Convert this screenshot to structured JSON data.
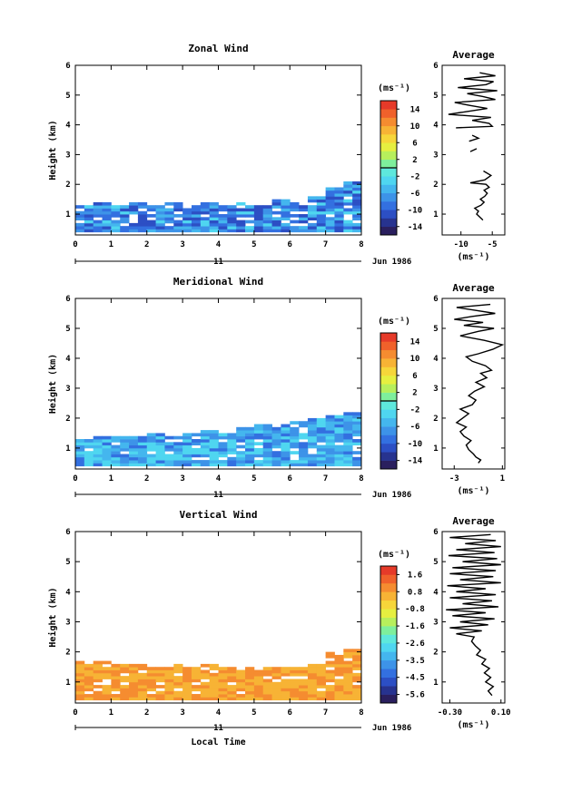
{
  "chart_data": [
    {
      "type": "heatmap",
      "title": "Zonal Wind",
      "xlabel": "",
      "ylabel": "Height (km)",
      "xlim": [
        0,
        8
      ],
      "ylim": [
        0.3,
        6
      ],
      "x_ticks": [
        "0",
        "1",
        "2",
        "3",
        "4",
        "5",
        "6",
        "7",
        "8"
      ],
      "y_ticks": [
        "1",
        "2",
        "3",
        "4",
        "5",
        "6"
      ],
      "date_axis": {
        "day": "11",
        "label": "Jun 1986"
      },
      "colorbar": {
        "unit": "(ms⁻¹)",
        "ticks": [
          "14",
          "10",
          "6",
          "2",
          "-2",
          "-6",
          "-10",
          "-14"
        ],
        "range": [
          -16,
          16
        ],
        "zero_marker": 0
      },
      "coverage": {
        "base_km": 0.4,
        "top_km": [
          1.25,
          1.35,
          1.3,
          1.35,
          1.3,
          1.35,
          1.3,
          1.4,
          1.3,
          1.4,
          1.3,
          1.5,
          1.4,
          1.6,
          1.9,
          2.1
        ],
        "value_range": [
          -12,
          -3
        ]
      },
      "profile": {
        "title": "Average",
        "xlabel": "(ms⁻¹)",
        "xlim": [
          -13,
          -3
        ],
        "x_ticks": [
          "-10",
          "-5"
        ],
        "y_ticks": [
          "1",
          "2",
          "3",
          "4",
          "5",
          "6"
        ],
        "segments": [
          [
            [
              -6.5,
              0.8
            ],
            [
              -7,
              0.9
            ],
            [
              -7.5,
              1.0
            ],
            [
              -7.2,
              1.1
            ],
            [
              -7.8,
              1.2
            ],
            [
              -6.8,
              1.3
            ],
            [
              -6.3,
              1.4
            ],
            [
              -6.9,
              1.5
            ],
            [
              -6.2,
              1.6
            ],
            [
              -5.8,
              1.7
            ],
            [
              -6.3,
              1.8
            ],
            [
              -5.5,
              1.9
            ],
            [
              -6,
              2.0
            ],
            [
              -8.5,
              2.05
            ],
            [
              -6.2,
              2.15
            ],
            [
              -5.2,
              2.3
            ],
            [
              -6.4,
              2.45
            ]
          ],
          [
            [
              -8.5,
              3.1
            ],
            [
              -7.5,
              3.2
            ]
          ],
          [
            [
              -8.7,
              3.45
            ],
            [
              -7.2,
              3.55
            ],
            [
              -8.2,
              3.65
            ]
          ],
          [
            [
              -10.8,
              3.9
            ],
            [
              -5,
              3.95
            ],
            [
              -5.5,
              4.05
            ],
            [
              -8.2,
              4.15
            ],
            [
              -5.2,
              4.25
            ],
            [
              -12,
              4.35
            ],
            [
              -9,
              4.45
            ],
            [
              -5.8,
              4.55
            ],
            [
              -8.5,
              4.65
            ],
            [
              -11,
              4.75
            ],
            [
              -4.5,
              4.85
            ],
            [
              -6.5,
              4.95
            ],
            [
              -9,
              5.05
            ],
            [
              -4.2,
              5.15
            ],
            [
              -10.5,
              5.25
            ],
            [
              -6,
              5.35
            ],
            [
              -4.8,
              5.45
            ],
            [
              -9.5,
              5.55
            ],
            [
              -4.5,
              5.65
            ],
            [
              -7,
              5.75
            ]
          ]
        ]
      }
    },
    {
      "type": "heatmap",
      "title": "Meridional Wind",
      "xlabel": "",
      "ylabel": "Height (km)",
      "xlim": [
        0,
        8
      ],
      "ylim": [
        0.3,
        6
      ],
      "x_ticks": [
        "0",
        "1",
        "2",
        "3",
        "4",
        "5",
        "6",
        "7",
        "8"
      ],
      "y_ticks": [
        "1",
        "2",
        "3",
        "4",
        "5",
        "6"
      ],
      "date_axis": {
        "day": "11",
        "label": "Jun 1986"
      },
      "colorbar": {
        "unit": "(ms⁻¹)",
        "ticks": [
          "14",
          "10",
          "6",
          "2",
          "-2",
          "-6",
          "-10",
          "-14"
        ],
        "range": [
          -16,
          16
        ],
        "zero_marker": 0
      },
      "coverage": {
        "base_km": 0.4,
        "top_km": [
          1.3,
          1.4,
          1.45,
          1.4,
          1.5,
          1.45,
          1.5,
          1.6,
          1.55,
          1.7,
          1.75,
          1.8,
          1.9,
          2.0,
          2.1,
          2.2
        ],
        "value_range": [
          -9,
          -2
        ]
      },
      "profile": {
        "title": "Average",
        "xlabel": "(ms⁻¹)",
        "xlim": [
          -4,
          1.2
        ],
        "x_ticks": [
          "-3",
          "1"
        ],
        "y_ticks": [
          "1",
          "2",
          "3",
          "4",
          "5",
          "6"
        ],
        "segments": [
          [
            [
              -1,
              0.5
            ],
            [
              -0.8,
              0.6
            ],
            [
              -1.2,
              0.7
            ],
            [
              -1.4,
              0.8
            ],
            [
              -1.8,
              0.95
            ],
            [
              -2,
              1.1
            ],
            [
              -1.6,
              1.25
            ],
            [
              -2.2,
              1.4
            ],
            [
              -2.5,
              1.55
            ],
            [
              -2,
              1.7
            ],
            [
              -2.8,
              1.85
            ],
            [
              -2.3,
              2.0
            ],
            [
              -1.8,
              2.15
            ],
            [
              -2.5,
              2.3
            ],
            [
              -1.5,
              2.45
            ],
            [
              -1.2,
              2.6
            ],
            [
              -1.8,
              2.75
            ],
            [
              -1.3,
              2.9
            ],
            [
              -0.5,
              3.05
            ],
            [
              -1.2,
              3.2
            ],
            [
              -0.3,
              3.35
            ],
            [
              -0.8,
              3.5
            ],
            [
              0.1,
              3.6
            ],
            [
              -0.4,
              3.75
            ],
            [
              -1.5,
              3.9
            ],
            [
              -2,
              4.05
            ],
            [
              -1,
              4.15
            ],
            [
              0.2,
              4.3
            ],
            [
              1,
              4.45
            ],
            [
              -0.5,
              4.6
            ],
            [
              -2.5,
              4.75
            ],
            [
              -1,
              4.9
            ],
            [
              0.3,
              5.0
            ],
            [
              -2.2,
              5.1
            ],
            [
              -0.6,
              5.2
            ],
            [
              -3,
              5.3
            ],
            [
              -1.5,
              5.4
            ],
            [
              0.4,
              5.5
            ],
            [
              -1.2,
              5.6
            ],
            [
              -2.8,
              5.7
            ],
            [
              0,
              5.8
            ]
          ]
        ]
      }
    },
    {
      "type": "heatmap",
      "title": "Vertical Wind",
      "xlabel": "Local Time",
      "ylabel": "Height (km)",
      "xlim": [
        0,
        8
      ],
      "ylim": [
        0.3,
        6
      ],
      "x_ticks": [
        "0",
        "1",
        "2",
        "3",
        "4",
        "5",
        "6",
        "7",
        "8"
      ],
      "y_ticks": [
        "1",
        "2",
        "3",
        "4",
        "5",
        "6"
      ],
      "date_axis": {
        "day": "11",
        "label": "Jun 1986"
      },
      "colorbar": {
        "unit": "(ms⁻¹)",
        "ticks": [
          "1.6",
          "0.8",
          "-0.8",
          "-1.6",
          "-2.6",
          "-3.5",
          "-4.5",
          "-5.6"
        ],
        "range": [
          -6,
          2
        ],
        "zero_marker": null
      },
      "coverage": {
        "base_km": 0.4,
        "top_km": [
          1.65,
          1.65,
          1.6,
          1.6,
          1.55,
          1.6,
          1.55,
          1.6,
          1.55,
          1.55,
          1.5,
          1.5,
          1.55,
          1.6,
          2.0,
          2.1
        ],
        "value_range": [
          0.1,
          0.8
        ]
      },
      "profile": {
        "title": "Average",
        "xlabel": "(ms⁻¹)",
        "xlim": [
          -0.36,
          0.13
        ],
        "x_ticks": [
          "-0.30",
          "0.10"
        ],
        "y_ticks": [
          "1",
          "2",
          "3",
          "4",
          "5",
          "6"
        ],
        "segments": [
          [
            [
              0.03,
              0.55
            ],
            [
              0.0,
              0.7
            ],
            [
              0.04,
              0.85
            ],
            [
              -0.02,
              1.0
            ],
            [
              0.02,
              1.15
            ],
            [
              -0.03,
              1.3
            ],
            [
              0.01,
              1.45
            ],
            [
              -0.05,
              1.6
            ],
            [
              -0.02,
              1.75
            ],
            [
              -0.09,
              1.9
            ],
            [
              -0.06,
              2.05
            ],
            [
              -0.1,
              2.2
            ],
            [
              -0.13,
              2.35
            ],
            [
              -0.11,
              2.5
            ],
            [
              -0.25,
              2.6
            ],
            [
              -0.05,
              2.7
            ],
            [
              -0.3,
              2.8
            ],
            [
              0.0,
              2.9
            ],
            [
              -0.22,
              3.0
            ],
            [
              0.05,
              3.1
            ],
            [
              -0.28,
              3.2
            ],
            [
              -0.02,
              3.3
            ],
            [
              -0.33,
              3.4
            ],
            [
              0.08,
              3.5
            ],
            [
              -0.2,
              3.6
            ],
            [
              0.03,
              3.7
            ],
            [
              -0.3,
              3.8
            ],
            [
              0.06,
              3.9
            ],
            [
              -0.25,
              4.0
            ],
            [
              -0.02,
              4.1
            ],
            [
              -0.32,
              4.2
            ],
            [
              0.1,
              4.3
            ],
            [
              -0.22,
              4.4
            ],
            [
              0.04,
              4.5
            ],
            [
              -0.3,
              4.6
            ],
            [
              0.06,
              4.7
            ],
            [
              -0.28,
              4.8
            ],
            [
              0.1,
              4.9
            ],
            [
              -0.2,
              5.0
            ],
            [
              0.07,
              5.1
            ],
            [
              -0.31,
              5.2
            ],
            [
              0.05,
              5.3
            ],
            [
              -0.25,
              5.4
            ],
            [
              0.1,
              5.5
            ],
            [
              -0.18,
              5.6
            ],
            [
              0.06,
              5.7
            ],
            [
              -0.3,
              5.8
            ],
            [
              0.02,
              5.9
            ]
          ]
        ]
      }
    }
  ]
}
